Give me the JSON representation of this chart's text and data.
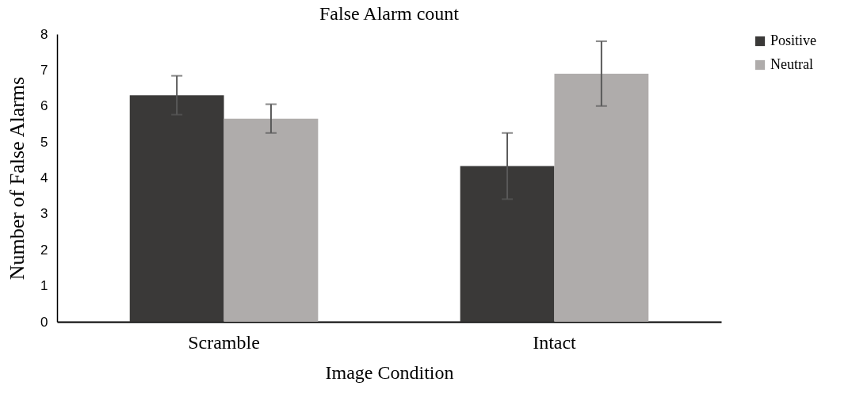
{
  "chart_data": {
    "type": "bar",
    "title": "False Alarm count",
    "xlabel": "Image Condition",
    "ylabel": "Number of False Alarms",
    "categories": [
      "Scramble",
      "Intact"
    ],
    "series": [
      {
        "name": "Positive",
        "color": "#3a3938",
        "values": [
          6.3,
          4.33
        ],
        "errors": [
          0.54,
          0.92
        ]
      },
      {
        "name": "Neutral",
        "color": "#afacab",
        "values": [
          5.65,
          6.9
        ],
        "errors": [
          0.4,
          0.9
        ]
      }
    ],
    "ylim": [
      0,
      8
    ],
    "yticks": [
      0,
      1,
      2,
      3,
      4,
      5,
      6,
      7,
      8
    ],
    "grid": false,
    "legend": "right"
  }
}
